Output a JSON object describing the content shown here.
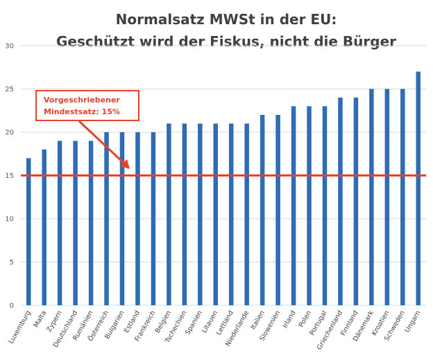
{
  "chart_data": {
    "type": "bar",
    "title": [
      "Normalsatz MWSt in der EU:",
      "Geschützt wird der Fiskus, nicht die Bürger"
    ],
    "xlabel": "",
    "ylabel": "",
    "ylim": [
      0,
      30
    ],
    "yticks": [
      0,
      5,
      10,
      15,
      20,
      25,
      30
    ],
    "grid": true,
    "legend": "none",
    "categories": [
      "Luxemburg",
      "Malta",
      "Zypern",
      "Deutschland",
      "Rumänien",
      "Österreich",
      "Bulgarien",
      "Estland",
      "Frankreich",
      "Belgien",
      "Tschechien",
      "Spanien",
      "Litauen",
      "Lettland",
      "Niederlande",
      "Italien",
      "Slowenien",
      "Irland",
      "Polen",
      "Portugal",
      "Griechenland",
      "Finnland",
      "Dänemark",
      "Kroatien",
      "Schweden",
      "Ungarn"
    ],
    "values": [
      17,
      18,
      19,
      19,
      19,
      20,
      20,
      20,
      20,
      21,
      21,
      21,
      21,
      21,
      21,
      22,
      22,
      23,
      23,
      23,
      24,
      24,
      25,
      25,
      25,
      27
    ],
    "reference_line": {
      "value": 15
    },
    "annotation": {
      "lines": [
        "Vorgeschriebener",
        "Mindestsatz: 15%"
      ]
    },
    "colors": {
      "bar": "#2e6db4",
      "reference": "#e8402a",
      "grid": "#d9d9d9"
    }
  }
}
